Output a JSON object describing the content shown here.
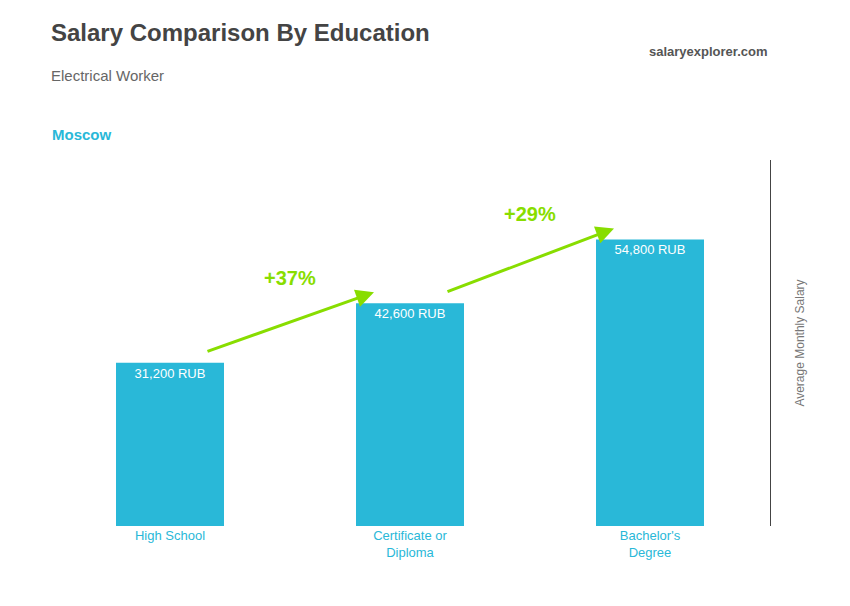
{
  "chart_data": {
    "type": "bar",
    "title": "Salary Comparison By Education",
    "subtitle": "Electrical Worker",
    "location": "Moscow",
    "watermark": "salaryexplorer.com",
    "ylabel": "Average Monthly Salary",
    "categories": [
      "High School",
      "Certificate or\nDiploma",
      "Bachelor's\nDegree"
    ],
    "values": [
      31200,
      42600,
      54800
    ],
    "value_labels": [
      "31,200 RUB",
      "42,600 RUB",
      "54,800 RUB"
    ],
    "data_labels": true,
    "color": "#29b8d8",
    "annotations": [
      {
        "text": "+37%",
        "color": "#88dd00"
      },
      {
        "text": "+29%",
        "color": "#88dd00"
      }
    ],
    "ylim": [
      0,
      70000
    ],
    "tick_labels": "x",
    "grid": false
  }
}
